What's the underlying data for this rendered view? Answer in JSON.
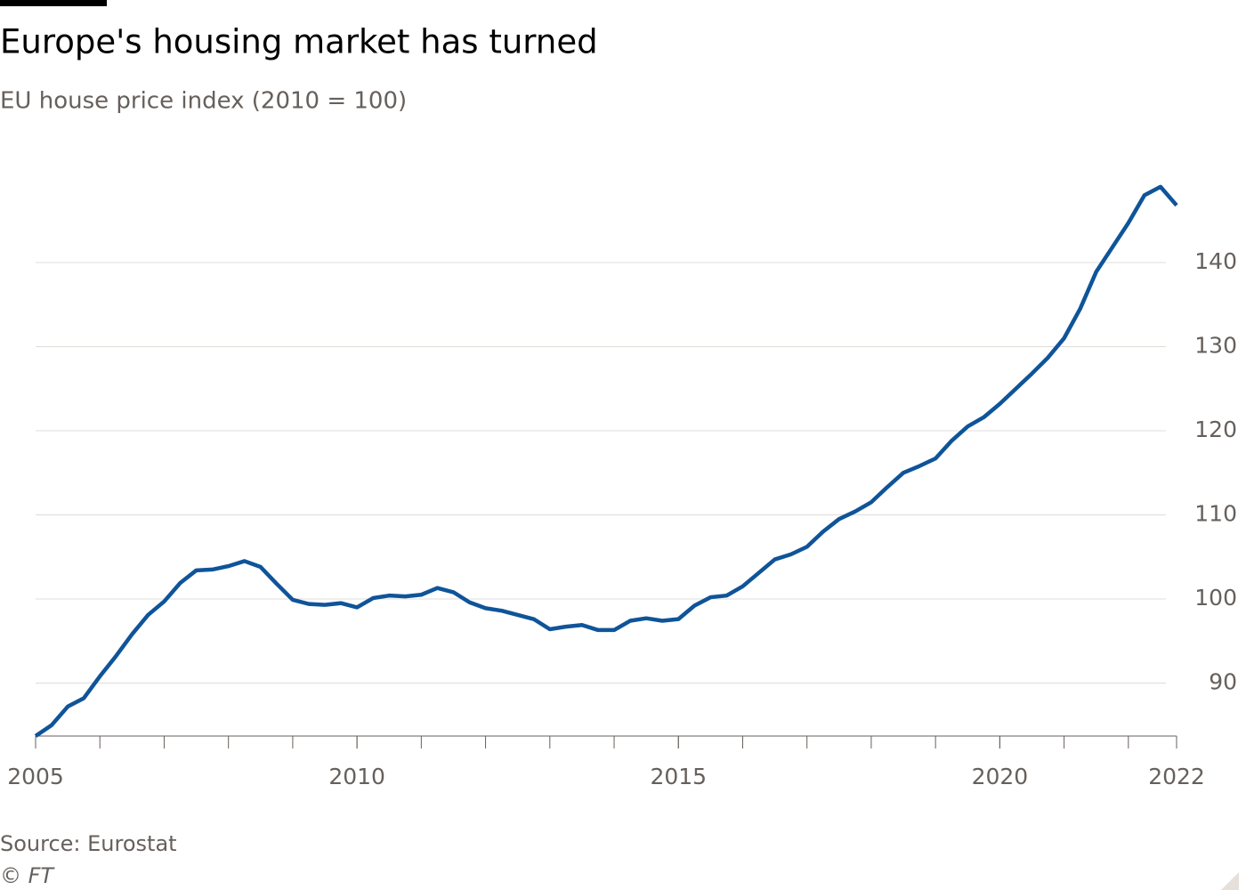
{
  "chart_data": {
    "type": "line",
    "title": "Europe's housing market has turned",
    "subtitle": "EU house price index (2010 = 100)",
    "source": "Source: Eurostat",
    "credit": "© FT",
    "x": [
      2005,
      2005.25,
      2005.5,
      2005.75,
      2006,
      2006.25,
      2006.5,
      2006.75,
      2007,
      2007.25,
      2007.5,
      2007.75,
      2008,
      2008.25,
      2008.5,
      2008.75,
      2009,
      2009.25,
      2009.5,
      2009.75,
      2010,
      2010.25,
      2010.5,
      2010.75,
      2011,
      2011.25,
      2011.5,
      2011.75,
      2012,
      2012.25,
      2012.5,
      2012.75,
      2013,
      2013.25,
      2013.5,
      2013.75,
      2014,
      2014.25,
      2014.5,
      2014.75,
      2015,
      2015.25,
      2015.5,
      2015.75,
      2016,
      2016.25,
      2016.5,
      2016.75,
      2017,
      2017.25,
      2017.5,
      2017.75,
      2018,
      2018.25,
      2018.5,
      2018.75,
      2019,
      2019.25,
      2019.5,
      2019.75,
      2020,
      2020.25,
      2020.5,
      2020.75,
      2021,
      2021.25,
      2021.5,
      2021.75,
      2022,
      2022.25,
      2022.5,
      2022.75
    ],
    "series": [
      {
        "name": "EU house price index",
        "color": "#0f5499",
        "values": [
          83.7,
          85.0,
          87.2,
          88.2,
          90.8,
          93.2,
          95.8,
          98.1,
          99.7,
          101.9,
          103.4,
          103.5,
          103.9,
          104.5,
          103.8,
          101.8,
          99.9,
          99.4,
          99.3,
          99.5,
          99.0,
          100.1,
          100.4,
          100.3,
          100.5,
          101.3,
          100.8,
          99.6,
          98.9,
          98.6,
          98.1,
          97.6,
          96.4,
          96.7,
          96.9,
          96.3,
          96.3,
          97.4,
          97.7,
          97.4,
          97.6,
          99.2,
          100.2,
          100.4,
          101.5,
          103.1,
          104.7,
          105.3,
          106.2,
          108.0,
          109.5,
          110.4,
          111.5,
          113.3,
          115.0,
          115.8,
          116.7,
          118.8,
          120.5,
          121.6,
          123.2,
          125.0,
          126.8,
          128.7,
          131.0,
          134.5,
          138.9,
          141.8,
          144.7,
          148.0,
          149.0,
          146.8
        ]
      }
    ],
    "xlim": [
      2005,
      2022.75
    ],
    "xticks": [
      2005,
      2010,
      2015,
      2020,
      {
        "value": 2022.75,
        "label": "2022"
      }
    ],
    "ylim": [
      83.7,
      151
    ],
    "yticks": [
      90,
      100,
      110,
      120,
      130,
      140
    ],
    "grid": true
  }
}
